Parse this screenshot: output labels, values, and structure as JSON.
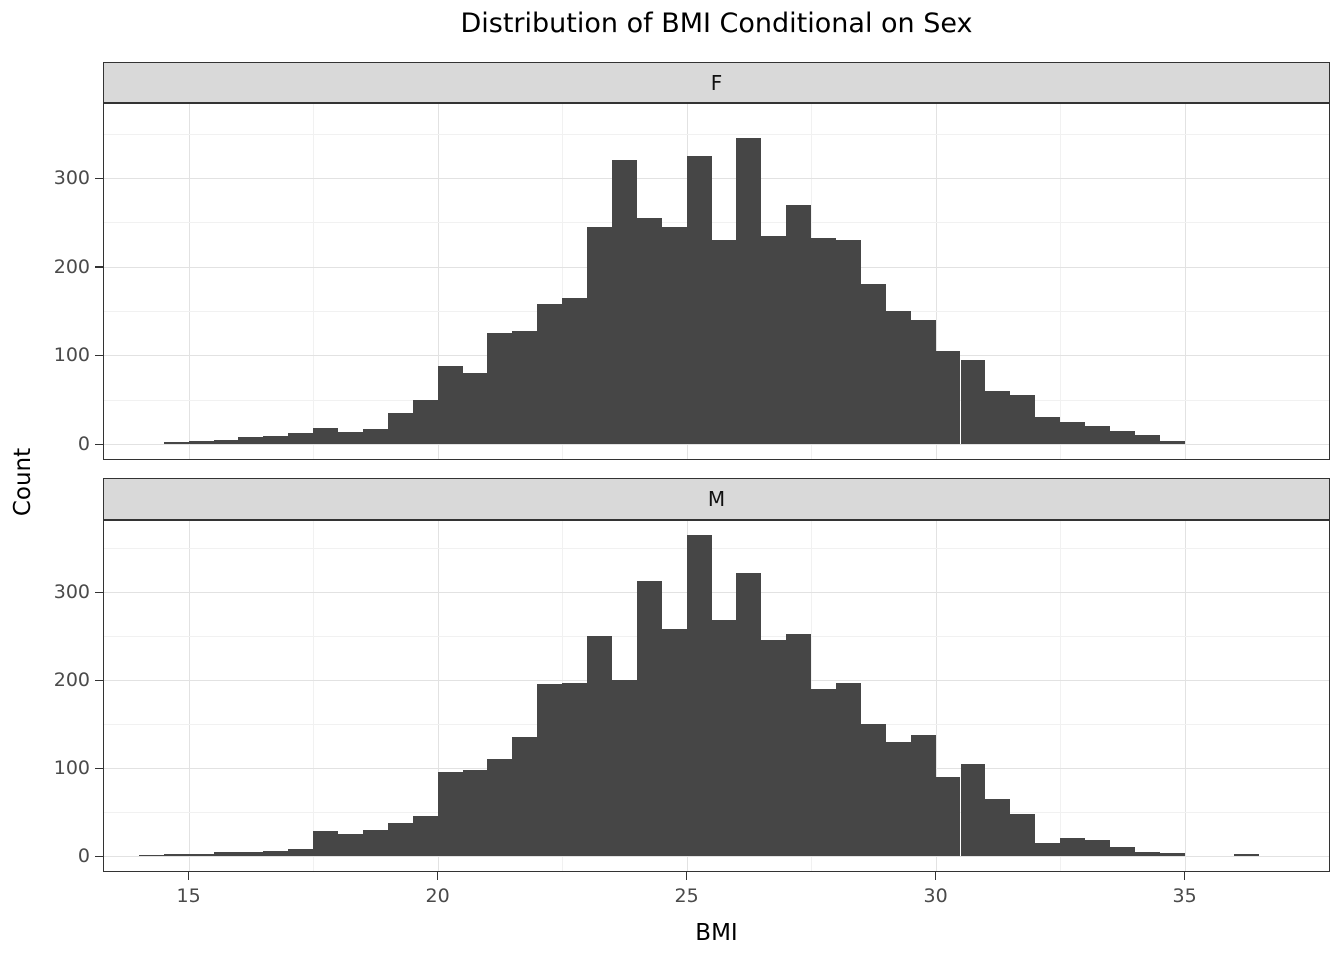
{
  "chart_data": {
    "type": "bar",
    "subtype": "faceted-histogram",
    "title": "Distribution of BMI Conditional on Sex",
    "xlabel": "BMI",
    "ylabel": "Count",
    "legend": "none",
    "grid": true,
    "bin_width": 0.5,
    "x_range": [
      13.3,
      37.9
    ],
    "ylim": [
      0,
      385
    ],
    "x_ticks": [
      15,
      20,
      25,
      30,
      35
    ],
    "x_minor": [
      17.5,
      22.5,
      27.5,
      32.5
    ],
    "y_ticks": [
      0,
      100,
      200,
      300
    ],
    "y_minor": [
      50,
      150,
      250,
      350
    ],
    "bar_color": "#464646",
    "strip_bg": "#d9d9d9",
    "facets": [
      {
        "label": "F",
        "bin_start": 14.5,
        "counts": [
          2,
          3,
          5,
          8,
          9,
          12,
          18,
          14,
          17,
          35,
          50,
          88,
          80,
          125,
          128,
          158,
          165,
          245,
          320,
          255,
          245,
          325,
          230,
          345,
          235,
          270,
          232,
          230,
          180,
          150,
          140,
          105,
          95,
          60,
          55,
          30,
          25,
          20,
          15,
          10,
          3
        ]
      },
      {
        "label": "M",
        "bin_start": 14.0,
        "counts": [
          1,
          2,
          2,
          4,
          5,
          6,
          8,
          28,
          25,
          30,
          38,
          45,
          95,
          98,
          110,
          135,
          195,
          197,
          250,
          200,
          313,
          258,
          365,
          268,
          322,
          245,
          252,
          190,
          197,
          150,
          130,
          138,
          90,
          105,
          65,
          48,
          15,
          20,
          18,
          10,
          5,
          3,
          0,
          0,
          2
        ]
      }
    ]
  }
}
